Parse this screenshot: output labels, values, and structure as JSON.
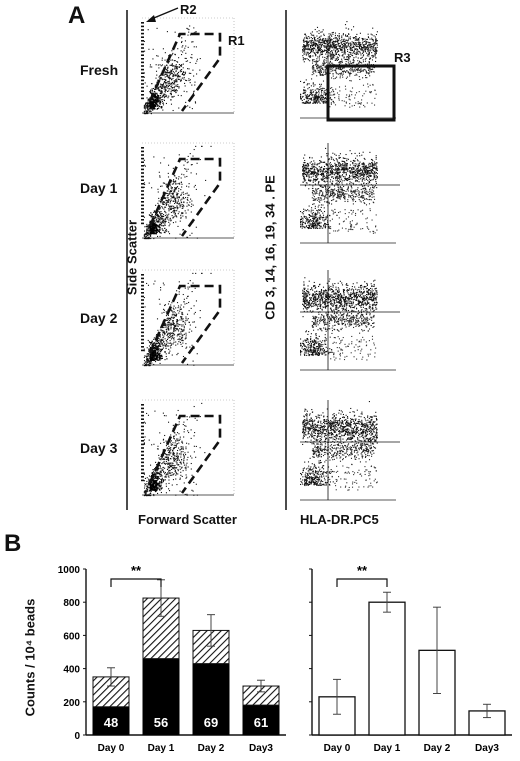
{
  "panel_a": {
    "letter": "A",
    "rows": [
      "Fresh",
      "Day 1",
      "Day 2",
      "Day 3"
    ],
    "left_y_title": "Side Scatter",
    "left_x_title": "Forward Scatter",
    "right_y_title": "CD 3, 14, 16, 19, 34 . PE",
    "right_x_title": "HLA-DR.PC5",
    "gates": {
      "r1": "R1",
      "r2": "R2",
      "r3": "R3"
    }
  },
  "panel_b": {
    "letter": "B",
    "y_title": "Counts / 10⁴ beads",
    "significance": "**"
  },
  "chart_data": [
    {
      "type": "bar",
      "stacked": true,
      "categories": [
        "Day 0",
        "Day 1",
        "Day 2",
        "Day3"
      ],
      "ylim": [
        0,
        1000
      ],
      "yticks": [
        0,
        200,
        400,
        600,
        800,
        1000
      ],
      "series": [
        {
          "fill": "solid",
          "values": [
            170,
            460,
            430,
            180
          ],
          "labels": [
            "48",
            "56",
            "69",
            "61"
          ]
        },
        {
          "fill": "hatched",
          "values": [
            180,
            365,
            200,
            115
          ]
        }
      ],
      "totals": [
        350,
        825,
        630,
        295
      ],
      "errors": [
        55,
        110,
        95,
        35
      ],
      "significance": {
        "between": [
          "Day 0",
          "Day 1"
        ],
        "label": "**"
      }
    },
    {
      "type": "bar",
      "categories": [
        "Day 0",
        "Day 1",
        "Day 2",
        "Day3"
      ],
      "values": [
        230,
        800,
        510,
        145
      ],
      "errors": [
        105,
        60,
        260,
        40
      ],
      "ylim": [
        0,
        1000
      ],
      "significance": {
        "between": [
          "Day 0",
          "Day 1"
        ],
        "label": "**"
      }
    }
  ]
}
